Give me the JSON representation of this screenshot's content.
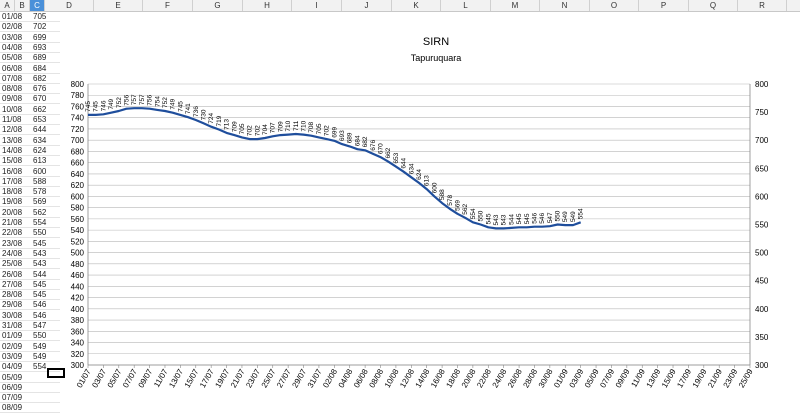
{
  "sheet": {
    "columns": [
      "A",
      "B",
      "C",
      "D",
      "E",
      "F",
      "G",
      "H",
      "I",
      "J",
      "K",
      "L",
      "M",
      "N",
      "O",
      "P",
      "Q",
      "R"
    ],
    "selected_column": "C",
    "rows": [
      {
        "date": "01/08",
        "value": "705"
      },
      {
        "date": "02/08",
        "value": "702"
      },
      {
        "date": "03/08",
        "value": "699"
      },
      {
        "date": "04/08",
        "value": "693"
      },
      {
        "date": "05/08",
        "value": "689"
      },
      {
        "date": "06/08",
        "value": "684"
      },
      {
        "date": "07/08",
        "value": "682"
      },
      {
        "date": "08/08",
        "value": "676"
      },
      {
        "date": "09/08",
        "value": "670"
      },
      {
        "date": "10/08",
        "value": "662"
      },
      {
        "date": "11/08",
        "value": "653"
      },
      {
        "date": "12/08",
        "value": "644"
      },
      {
        "date": "13/08",
        "value": "634"
      },
      {
        "date": "14/08",
        "value": "624"
      },
      {
        "date": "15/08",
        "value": "613"
      },
      {
        "date": "16/08",
        "value": "600"
      },
      {
        "date": "17/08",
        "value": "588"
      },
      {
        "date": "18/08",
        "value": "578"
      },
      {
        "date": "19/08",
        "value": "569"
      },
      {
        "date": "20/08",
        "value": "562"
      },
      {
        "date": "21/08",
        "value": "554"
      },
      {
        "date": "22/08",
        "value": "550"
      },
      {
        "date": "23/08",
        "value": "545"
      },
      {
        "date": "24/08",
        "value": "543"
      },
      {
        "date": "25/08",
        "value": "543"
      },
      {
        "date": "26/08",
        "value": "544"
      },
      {
        "date": "27/08",
        "value": "545"
      },
      {
        "date": "28/08",
        "value": "545"
      },
      {
        "date": "29/08",
        "value": "546"
      },
      {
        "date": "30/08",
        "value": "546"
      },
      {
        "date": "31/08",
        "value": "547"
      },
      {
        "date": "01/09",
        "value": "550"
      },
      {
        "date": "02/09",
        "value": "549"
      },
      {
        "date": "03/09",
        "value": "549"
      },
      {
        "date": "04/09",
        "value": "554"
      },
      {
        "date": "05/09",
        "value": ""
      },
      {
        "date": "06/09",
        "value": ""
      },
      {
        "date": "07/09",
        "value": ""
      },
      {
        "date": "08/09",
        "value": ""
      }
    ]
  },
  "chart_data": {
    "type": "line",
    "title": "SIRN",
    "subtitle": "Tapuruquara",
    "ylim": [
      300,
      800
    ],
    "yticks": [
      300,
      320,
      340,
      360,
      380,
      400,
      420,
      440,
      460,
      480,
      500,
      520,
      540,
      560,
      580,
      600,
      620,
      640,
      660,
      680,
      700,
      720,
      740,
      760,
      780,
      800
    ],
    "yticks_right": [
      300,
      350,
      400,
      450,
      500,
      550,
      600,
      650,
      700,
      750,
      800
    ],
    "xticks": [
      "01/07",
      "03/07",
      "05/07",
      "07/07",
      "09/07",
      "11/07",
      "13/07",
      "15/07",
      "17/07",
      "19/07",
      "21/07",
      "23/07",
      "25/07",
      "27/07",
      "29/07",
      "31/07",
      "02/08",
      "04/08",
      "06/08",
      "08/08",
      "10/08",
      "12/08",
      "14/08",
      "16/08",
      "18/08",
      "20/08",
      "22/08",
      "24/08",
      "26/08",
      "28/08",
      "30/08",
      "01/09",
      "03/09",
      "05/09",
      "07/09",
      "09/09",
      "11/09",
      "13/09",
      "15/09",
      "17/09",
      "19/09",
      "21/09",
      "23/09",
      "25/09"
    ],
    "grid": true,
    "line_color": "#1f4e9c",
    "series": [
      {
        "values": [
          745,
          745,
          746,
          749,
          752,
          756,
          757,
          757,
          756,
          754,
          752,
          749,
          745,
          741,
          736,
          730,
          724,
          719,
          713,
          709,
          705,
          702,
          702,
          704,
          707,
          709,
          710,
          711,
          710,
          708,
          705,
          702,
          699,
          693,
          689,
          684,
          682,
          676,
          670,
          662,
          653,
          644,
          634,
          624,
          613,
          600,
          588,
          578,
          569,
          562,
          554,
          550,
          545,
          543,
          543,
          544,
          545,
          545,
          546,
          546,
          547,
          550,
          549,
          549,
          554
        ]
      }
    ]
  }
}
